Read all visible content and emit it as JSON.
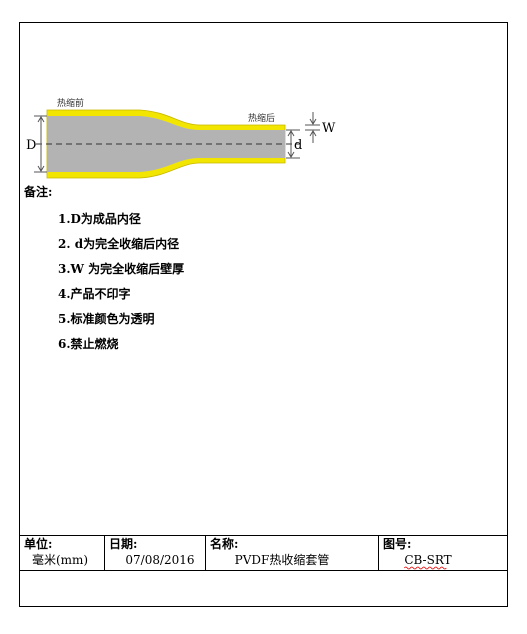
{
  "diagram": {
    "before_label": "热缩前",
    "after_label": "热缩后",
    "outer_dim": "D",
    "inner_dim": "d",
    "wall_dim": "W"
  },
  "notes": {
    "title": "备注:",
    "items": [
      "1.D为成品内径",
      "2. d为完全收缩后内径",
      "3.W 为完全收缩后壁厚",
      "4.产品不印字",
      "5.标准颜色为透明",
      "6.禁止燃烧"
    ]
  },
  "footer": [
    {
      "label": "单位:",
      "value": "毫米(mm)"
    },
    {
      "label": "日期:",
      "value": "07/08/2016"
    },
    {
      "label": "名称:",
      "value": "PVDF热收缩套管"
    },
    {
      "label": "图号:",
      "value": "CB-SRT"
    }
  ]
}
